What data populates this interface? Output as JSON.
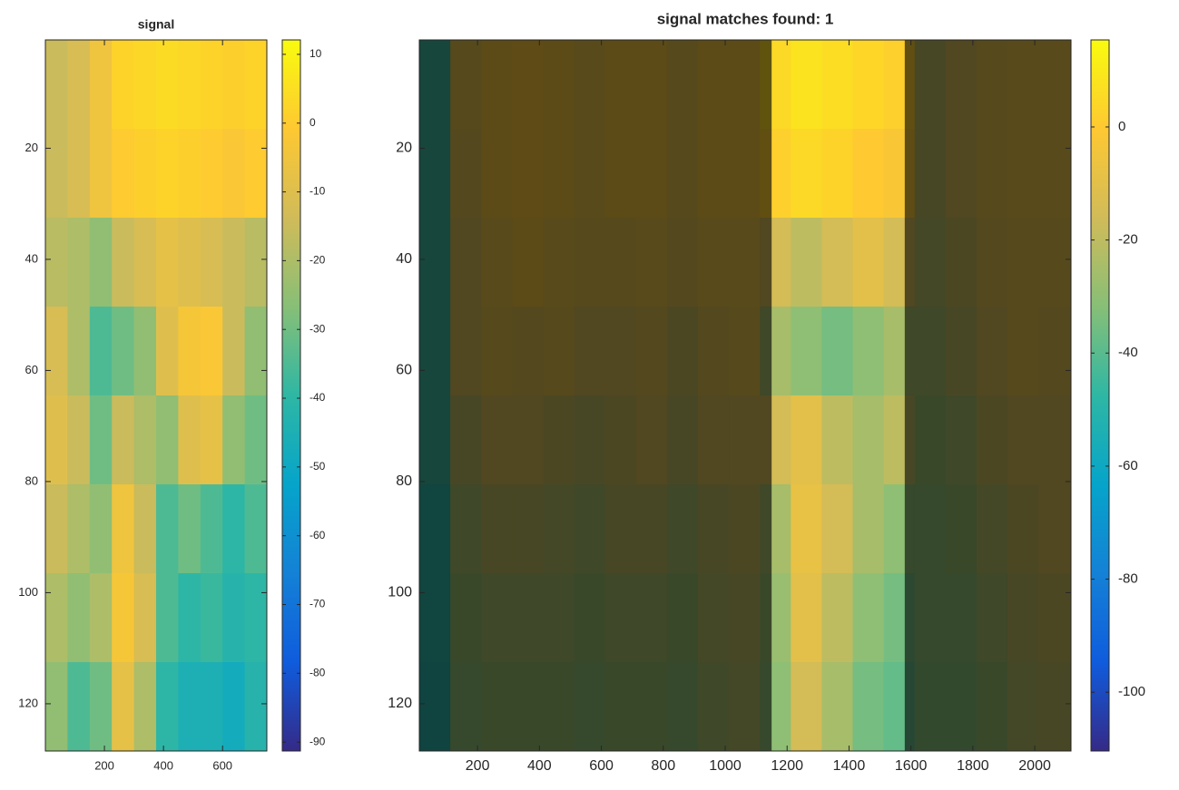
{
  "chart_data": [
    {
      "type": "heatmap",
      "title": "signal",
      "colormap": "parula",
      "x": [
        37.5,
        112.5,
        187.5,
        262.5,
        337.5,
        412.5,
        487.5,
        562.5,
        637.5,
        712.5
      ],
      "y": [
        8.5,
        24.5,
        40.5,
        56.5,
        72.5,
        88.5,
        104.5,
        120.5
      ],
      "z": [
        [
          -15,
          -12,
          -5,
          2,
          3,
          4,
          3,
          2,
          1,
          2
        ],
        [
          -15,
          -12,
          -5,
          0,
          1,
          2,
          1,
          0,
          -2,
          0
        ],
        [
          -18,
          -20,
          -25,
          -15,
          -12,
          -8,
          -10,
          -12,
          -15,
          -18
        ],
        [
          -12,
          -20,
          -35,
          -30,
          -25,
          -10,
          -3,
          -2,
          -15,
          -25
        ],
        [
          -10,
          -15,
          -30,
          -15,
          -20,
          -25,
          -10,
          -8,
          -25,
          -30
        ],
        [
          -15,
          -20,
          -25,
          -5,
          -15,
          -35,
          -30,
          -35,
          -40,
          -35
        ],
        [
          -20,
          -25,
          -20,
          -3,
          -12,
          -35,
          -40,
          -38,
          -42,
          -40
        ],
        [
          -25,
          -35,
          -30,
          -8,
          -20,
          -40,
          -45,
          -45,
          -48,
          -42
        ]
      ],
      "xlim": [
        0,
        750
      ],
      "ylim": [
        0.5,
        128.5
      ],
      "xticks": [
        200,
        400,
        600
      ],
      "yticks": [
        20,
        40,
        60,
        80,
        100,
        120
      ],
      "clim": [
        -91.3,
        12.1
      ],
      "cticks": [
        10,
        0,
        -10,
        -20,
        -30,
        -40,
        -50,
        -60,
        -70,
        -80,
        -90
      ]
    },
    {
      "type": "heatmap",
      "title": "signal matches found: 1",
      "colormap": "parula",
      "x": [
        62,
        162,
        262,
        362,
        462,
        562,
        662,
        762,
        862,
        962,
        1062,
        1162,
        1262,
        1362,
        1462,
        1562,
        1662,
        1762,
        1862,
        1962,
        2062
      ],
      "y": [
        8.5,
        24.5,
        40.5,
        56.5,
        72.5,
        88.5,
        104.5,
        120.5
      ],
      "z": [
        [
          -45,
          -10,
          -5,
          -3,
          -5,
          -8,
          -5,
          -5,
          -10,
          -5,
          -5,
          5,
          8,
          6,
          4,
          2,
          -20,
          -15,
          -10,
          -8,
          -8
        ],
        [
          -45,
          -12,
          -5,
          -3,
          -5,
          -8,
          -5,
          -5,
          -10,
          -5,
          -5,
          2,
          5,
          3,
          0,
          -2,
          -20,
          -15,
          -10,
          -8,
          -8
        ],
        [
          -45,
          -15,
          -8,
          -5,
          -8,
          -10,
          -10,
          -8,
          -12,
          -8,
          -8,
          -15,
          -20,
          -15,
          -10,
          -15,
          -22,
          -18,
          -12,
          -10,
          -10
        ],
        [
          -45,
          -15,
          -10,
          -12,
          -10,
          -15,
          -15,
          -12,
          -18,
          -12,
          -10,
          -25,
          -30,
          -35,
          -30,
          -25,
          -25,
          -20,
          -15,
          -10,
          -12
        ],
        [
          -45,
          -20,
          -15,
          -15,
          -18,
          -20,
          -18,
          -15,
          -20,
          -15,
          -15,
          -15,
          -10,
          -20,
          -25,
          -20,
          -28,
          -25,
          -18,
          -15,
          -15
        ],
        [
          -48,
          -25,
          -20,
          -20,
          -22,
          -25,
          -20,
          -20,
          -25,
          -20,
          -18,
          -25,
          -8,
          -15,
          -25,
          -30,
          -30,
          -28,
          -22,
          -18,
          -15
        ],
        [
          -48,
          -28,
          -25,
          -25,
          -25,
          -28,
          -25,
          -25,
          -28,
          -22,
          -20,
          -28,
          -10,
          -20,
          -30,
          -35,
          -30,
          -30,
          -25,
          -20,
          -18
        ],
        [
          -50,
          -30,
          -28,
          -28,
          -28,
          -30,
          -28,
          -28,
          -30,
          -25,
          -22,
          -30,
          -15,
          -25,
          -35,
          -38,
          -32,
          -32,
          -28,
          -22,
          -20
        ]
      ],
      "xlim": [
        12,
        2117
      ],
      "ylim": [
        0.5,
        128.5
      ],
      "xticks": [
        200,
        400,
        600,
        800,
        1000,
        1200,
        1400,
        1600,
        1800,
        2000
      ],
      "yticks": [
        20,
        40,
        60,
        80,
        100,
        120
      ],
      "clim": [
        -110.4,
        15.4
      ],
      "cticks": [
        0,
        -20,
        -40,
        -60,
        -80,
        -100
      ],
      "highlight_x": [
        1150,
        1580
      ]
    }
  ]
}
